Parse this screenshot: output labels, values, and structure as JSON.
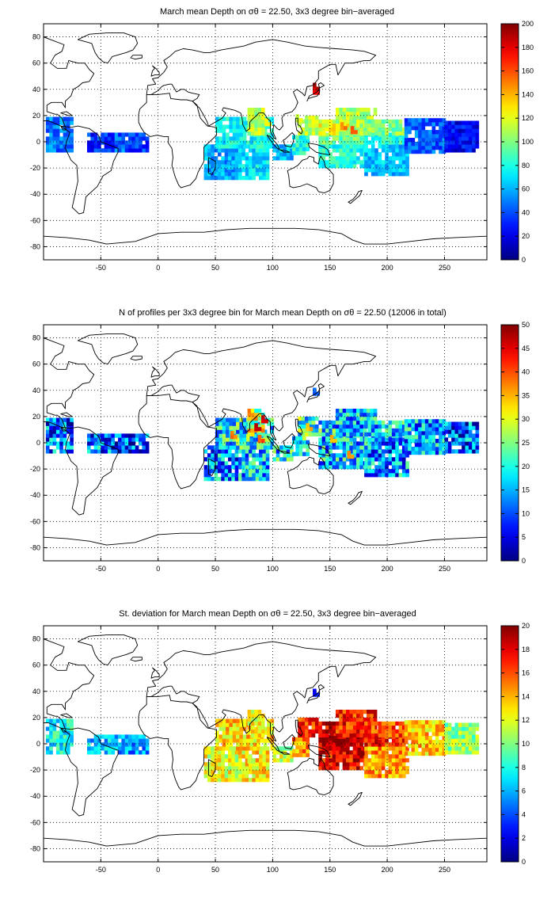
{
  "panels": [
    {
      "id": "mean",
      "title": "March mean Depth on σθ = 22.50, 3x3 degree bin−averaged",
      "cmax": 200,
      "cbar_ticks": [
        0,
        20,
        40,
        60,
        80,
        100,
        120,
        140,
        160,
        180,
        200
      ],
      "tiles": [
        [
          -98,
          -8,
          -74,
          17,
          0.24
        ],
        [
          -62,
          -8,
          -38,
          5,
          0.16
        ],
        [
          -38,
          -8,
          -26,
          5,
          0.22
        ],
        [
          -26,
          -8,
          -8,
          5,
          0.18
        ],
        [
          40,
          -29,
          70,
          -2,
          0.28
        ],
        [
          70,
          -29,
          95,
          -2,
          0.35
        ],
        [
          50,
          -5,
          100,
          18,
          0.38
        ],
        [
          78,
          5,
          92,
          24,
          0.55
        ],
        [
          100,
          -14,
          117,
          -2,
          0.32
        ],
        [
          117,
          -10,
          130,
          5,
          0.4
        ],
        [
          122,
          5,
          140,
          18,
          0.55
        ],
        [
          140,
          -20,
          180,
          -2,
          0.4
        ],
        [
          140,
          -2,
          180,
          5,
          0.48
        ],
        [
          140,
          5,
          180,
          17,
          0.62
        ],
        [
          155,
          5,
          190,
          24,
          0.55
        ],
        [
          180,
          -26,
          218,
          -2,
          0.32
        ],
        [
          180,
          -2,
          215,
          5,
          0.4
        ],
        [
          180,
          5,
          215,
          17,
          0.5
        ],
        [
          215,
          -9,
          250,
          18,
          0.22
        ],
        [
          250,
          -8,
          278,
          16,
          0.12
        ]
      ],
      "spots": [
        [
          135,
          36,
          0.9
        ],
        [
          137,
          39,
          0.95
        ],
        [
          120,
          15,
          0.6
        ],
        [
          160,
          11,
          0.75
        ],
        [
          170,
          8,
          0.8
        ],
        [
          94,
          12,
          0.62
        ],
        [
          60,
          -20,
          0.33
        ],
        [
          200,
          -22,
          0.3
        ]
      ],
      "spot_seed": 11,
      "noise": 0.08
    },
    {
      "id": "count",
      "title": "N of profiles per 3x3 degree bin for March mean Depth on σθ = 22.50 (12006 in total)",
      "cmax": 50,
      "cbar_ticks": [
        0,
        5,
        10,
        15,
        20,
        25,
        30,
        35,
        40,
        45,
        50
      ],
      "tiles": [
        [
          -98,
          -8,
          -74,
          17,
          0.22
        ],
        [
          -62,
          -8,
          -38,
          5,
          0.24
        ],
        [
          -38,
          -8,
          -8,
          5,
          0.2
        ],
        [
          40,
          -29,
          70,
          -2,
          0.26
        ],
        [
          70,
          -29,
          95,
          -2,
          0.32
        ],
        [
          50,
          -5,
          100,
          18,
          0.38
        ],
        [
          78,
          5,
          92,
          24,
          0.55
        ],
        [
          100,
          -14,
          117,
          -2,
          0.34
        ],
        [
          117,
          -10,
          130,
          5,
          0.38
        ],
        [
          122,
          5,
          140,
          18,
          0.42
        ],
        [
          140,
          -20,
          180,
          -2,
          0.32
        ],
        [
          140,
          -2,
          180,
          5,
          0.3
        ],
        [
          140,
          5,
          180,
          17,
          0.36
        ],
        [
          155,
          5,
          190,
          24,
          0.3
        ],
        [
          180,
          -26,
          218,
          -2,
          0.26
        ],
        [
          180,
          -2,
          215,
          5,
          0.3
        ],
        [
          180,
          5,
          215,
          17,
          0.32
        ],
        [
          215,
          -9,
          250,
          18,
          0.3
        ],
        [
          250,
          -8,
          278,
          16,
          0.22
        ]
      ],
      "spots": [
        [
          85,
          10,
          0.95
        ],
        [
          90,
          15,
          0.9
        ],
        [
          88,
          0,
          0.8
        ],
        [
          65,
          5,
          0.75
        ],
        [
          130,
          10,
          0.7
        ],
        [
          150,
          0,
          0.7
        ],
        [
          165,
          -12,
          0.75
        ],
        [
          135,
          36,
          0.2
        ]
      ],
      "spot_seed": 23,
      "noise": 0.22
    },
    {
      "id": "std",
      "title": "St. deviation for March mean Depth on σθ = 22.50, 3x3 degree bin−averaged",
      "cmax": 20,
      "cbar_ticks": [
        0,
        2,
        4,
        6,
        8,
        10,
        12,
        14,
        16,
        18,
        20
      ],
      "tiles": [
        [
          -98,
          -8,
          -74,
          17,
          0.38
        ],
        [
          -62,
          -8,
          -38,
          5,
          0.32
        ],
        [
          -38,
          -8,
          -8,
          5,
          0.28
        ],
        [
          40,
          -29,
          70,
          -2,
          0.6
        ],
        [
          70,
          -29,
          95,
          -2,
          0.64
        ],
        [
          50,
          -5,
          100,
          18,
          0.66
        ],
        [
          78,
          5,
          92,
          24,
          0.62
        ],
        [
          100,
          -14,
          117,
          -2,
          0.58
        ],
        [
          117,
          -10,
          130,
          5,
          0.72
        ],
        [
          122,
          5,
          140,
          18,
          0.85
        ],
        [
          140,
          -20,
          180,
          -2,
          0.88
        ],
        [
          140,
          -2,
          180,
          5,
          0.95
        ],
        [
          140,
          5,
          180,
          17,
          0.92
        ],
        [
          155,
          5,
          190,
          24,
          0.85
        ],
        [
          180,
          -26,
          218,
          -2,
          0.72
        ],
        [
          180,
          -2,
          215,
          5,
          0.85
        ],
        [
          180,
          5,
          215,
          17,
          0.8
        ],
        [
          215,
          -9,
          250,
          18,
          0.68
        ],
        [
          250,
          -8,
          278,
          16,
          0.52
        ]
      ],
      "spots": [
        [
          135,
          36,
          0.15
        ],
        [
          160,
          -5,
          1.0
        ],
        [
          175,
          -8,
          1.0
        ],
        [
          150,
          5,
          0.98
        ],
        [
          190,
          0,
          0.95
        ],
        [
          80,
          -15,
          0.55
        ]
      ],
      "spot_seed": 37,
      "noise": 0.12
    }
  ],
  "axes": {
    "lon_range": [
      -100,
      287
    ],
    "lat_range": [
      -90,
      90
    ],
    "x_ticks": [
      -50,
      0,
      50,
      100,
      150,
      200,
      250
    ],
    "y_ticks": [
      -80,
      -60,
      -40,
      -20,
      0,
      20,
      40,
      60,
      80
    ],
    "grid": "dotted"
  },
  "colormap": "jet"
}
